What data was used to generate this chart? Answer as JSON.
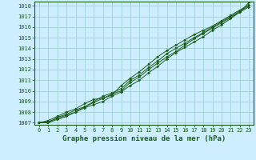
{
  "title": "Graphe pression niveau de la mer (hPa)",
  "xlabel_hours": [
    0,
    1,
    2,
    3,
    4,
    5,
    6,
    7,
    8,
    9,
    10,
    11,
    12,
    13,
    14,
    15,
    16,
    17,
    18,
    19,
    20,
    21,
    22,
    23
  ],
  "series": [
    [
      1007.0,
      1007.0,
      1007.5,
      1007.8,
      1008.2,
      1008.5,
      1009.0,
      1009.5,
      1009.8,
      1010.2,
      1011.0,
      1011.5,
      1012.2,
      1012.8,
      1013.5,
      1014.0,
      1014.5,
      1015.0,
      1015.5,
      1016.0,
      1016.5,
      1017.0,
      1017.5,
      1018.0
    ],
    [
      1007.0,
      1007.2,
      1007.6,
      1008.0,
      1008.3,
      1008.8,
      1009.2,
      1009.3,
      1009.6,
      1010.5,
      1011.2,
      1011.8,
      1012.5,
      1013.2,
      1013.8,
      1014.3,
      1014.8,
      1015.3,
      1015.7,
      1016.1,
      1016.6,
      1017.1,
      1017.6,
      1018.1
    ],
    [
      1007.0,
      1007.1,
      1007.4,
      1007.7,
      1008.0,
      1008.5,
      1008.9,
      1009.3,
      1009.7,
      1010.0,
      1010.8,
      1011.3,
      1012.0,
      1012.6,
      1013.2,
      1013.7,
      1014.3,
      1014.9,
      1015.4,
      1015.9,
      1016.4,
      1016.9,
      1017.4,
      1018.3
    ],
    [
      1007.0,
      1007.0,
      1007.3,
      1007.6,
      1008.0,
      1008.4,
      1008.7,
      1009.0,
      1009.5,
      1009.9,
      1010.5,
      1011.0,
      1011.7,
      1012.3,
      1013.0,
      1013.6,
      1014.1,
      1014.6,
      1015.1,
      1015.7,
      1016.2,
      1016.8,
      1017.4,
      1017.9
    ]
  ],
  "line_color": "#1a5c1a",
  "marker_color": "#1a5c1a",
  "bg_color": "#cceeff",
  "grid_color": "#99cccc",
  "ylim": [
    1006.8,
    1018.4
  ],
  "yticks": [
    1007,
    1008,
    1009,
    1010,
    1011,
    1012,
    1013,
    1014,
    1015,
    1016,
    1017,
    1018
  ],
  "title_color": "#1a5c1a",
  "tick_fontsize": 5.0,
  "title_fontsize": 6.5
}
